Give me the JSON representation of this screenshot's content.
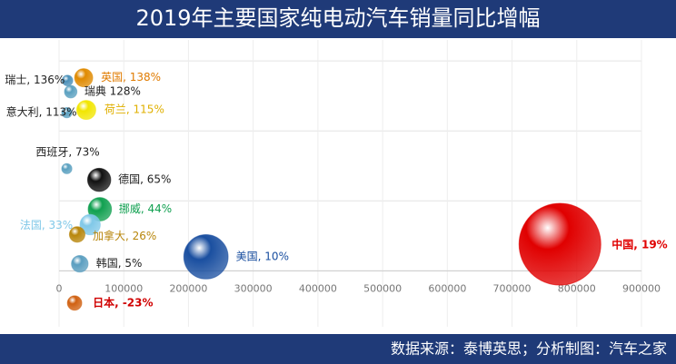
{
  "chart_data": {
    "type": "bubble",
    "title": "2019年主要国家纯电动汽车销量同比增幅",
    "source": "数据来源：泰博英思；分析制图：汽车之家",
    "xlim": [
      0,
      900000
    ],
    "xticks": [
      0,
      100000,
      200000,
      300000,
      400000,
      500000,
      600000,
      700000,
      800000,
      900000
    ],
    "ylim": [
      -40,
      165
    ],
    "yticks": [
      0,
      50,
      100,
      150
    ],
    "grid": true,
    "points": [
      {
        "label": "瑞士, 136%",
        "x": 13000,
        "y": 136,
        "size": 13000,
        "color": "#4a8fb8",
        "label_color": "#222222"
      },
      {
        "label": "英国, 138%",
        "x": 38000,
        "y": 138,
        "size": 38000,
        "color": "#e08a00",
        "label_color": "#e07b00"
      },
      {
        "label": "瑞典 128%",
        "x": 18000,
        "y": 128,
        "size": 18000,
        "color": "#5aa0c0",
        "label_color": "#222222"
      },
      {
        "label": "意大利, 113%",
        "x": 12000,
        "y": 113,
        "size": 12000,
        "color": "#5aa0c0",
        "label_color": "#222222"
      },
      {
        "label": "荷兰, 115%",
        "x": 42000,
        "y": 115,
        "size": 42000,
        "color": "#f2e600",
        "label_color": "#e0b000"
      },
      {
        "label": "西班牙, 73%",
        "x": 12000,
        "y": 73,
        "size": 12000,
        "color": "#5aa0c0",
        "label_color": "#222222"
      },
      {
        "label": "德国, 65%",
        "x": 62000,
        "y": 65,
        "size": 62000,
        "color": "#111111",
        "label_color": "#222222"
      },
      {
        "label": "挪威, 44%",
        "x": 63000,
        "y": 44,
        "size": 63000,
        "color": "#10a050",
        "label_color": "#10a050"
      },
      {
        "label": "法国, 33%",
        "x": 48000,
        "y": 33,
        "size": 48000,
        "color": "#80c8e8",
        "label_color": "#80c8e8"
      },
      {
        "label": "加拿大, 26%",
        "x": 28000,
        "y": 26,
        "size": 28000,
        "color": "#b8860b",
        "label_color": "#b8860b"
      },
      {
        "label": "韩国, 5%",
        "x": 32000,
        "y": 5,
        "size": 32000,
        "color": "#5a9ec0",
        "label_color": "#222222"
      },
      {
        "label": "美国, 10%",
        "x": 227000,
        "y": 10,
        "size": 227000,
        "color": "#1a4fa0",
        "label_color": "#1a4fa0"
      },
      {
        "label": "中国, 19%",
        "x": 774000,
        "y": 19,
        "size": 774000,
        "color": "#e00000",
        "label_color": "#e00000"
      },
      {
        "label": "日本, -23%",
        "x": 24000,
        "y": -23,
        "size": 24000,
        "color": "#d06010",
        "label_color": "#d00000"
      }
    ]
  }
}
